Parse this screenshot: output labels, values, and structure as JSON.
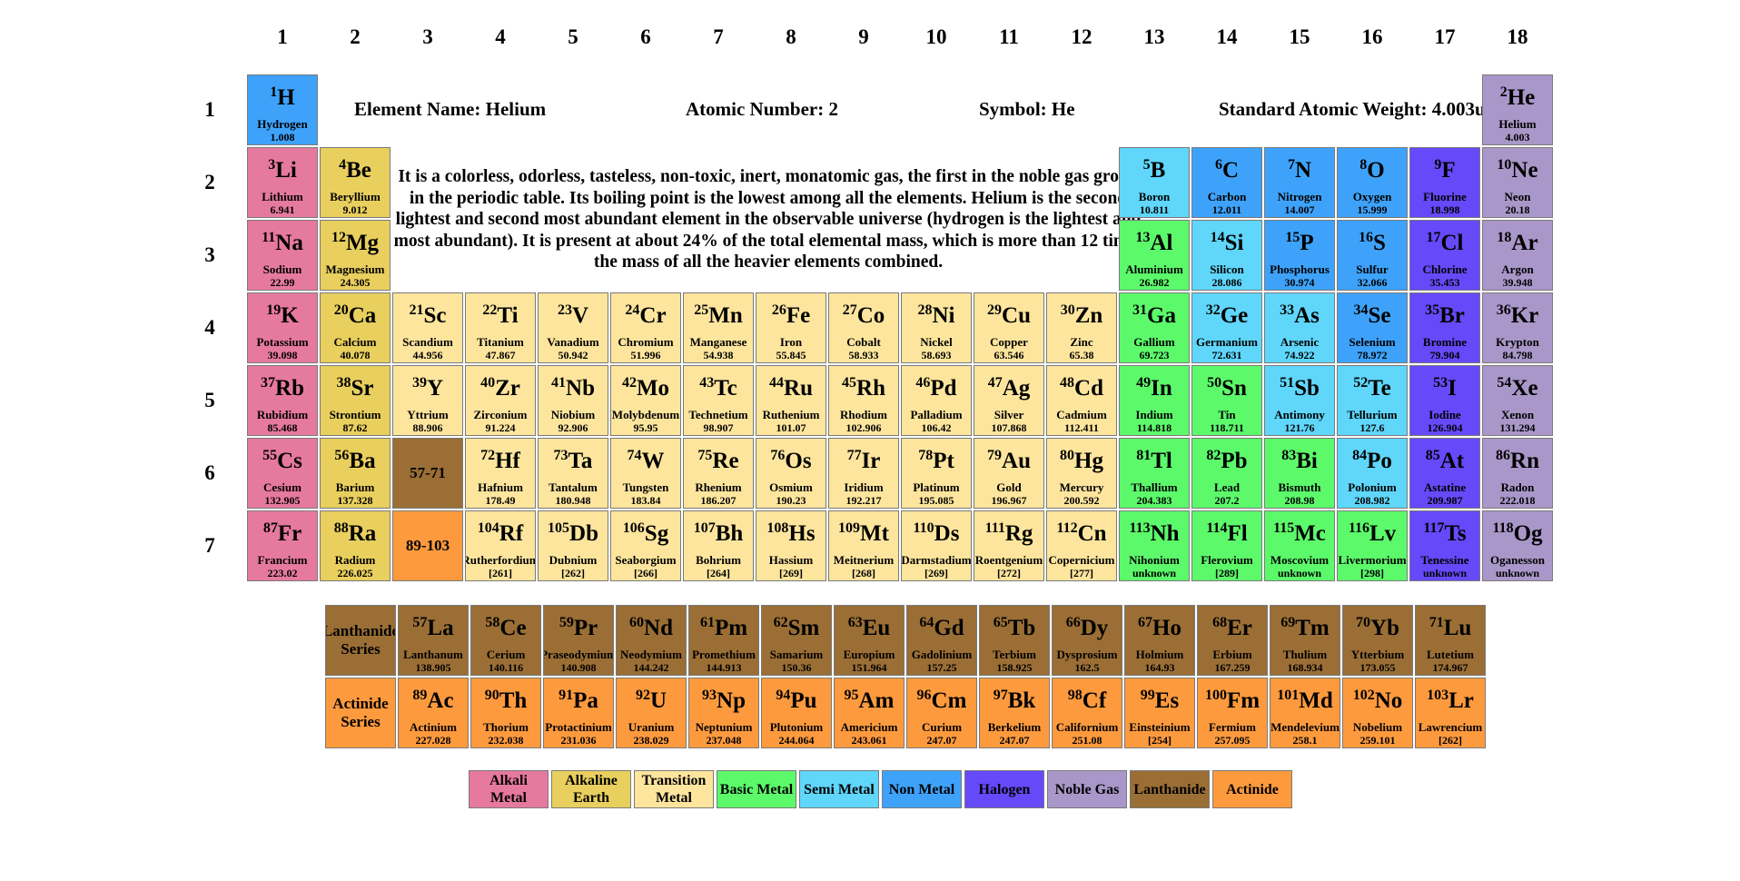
{
  "colors": {
    "alkali": "#e6799e",
    "alkaline": "#e8cf5e",
    "transition": "#fde59d",
    "basic": "#5cf96b",
    "semi": "#5fd6fa",
    "nonmetal": "#3ea2fa",
    "halogen": "#6649f9",
    "noble": "#a997c9",
    "lanthanide": "#9a6e35",
    "actinide": "#fd9a3e"
  },
  "groups": [
    "1",
    "2",
    "3",
    "4",
    "5",
    "6",
    "7",
    "8",
    "9",
    "10",
    "11",
    "12",
    "13",
    "14",
    "15",
    "16",
    "17",
    "18"
  ],
  "periods": [
    "1",
    "2",
    "3",
    "4",
    "5",
    "6",
    "7"
  ],
  "info": {
    "name": "Element Name: Helium",
    "number": "Atomic Number: 2",
    "symbol": "Symbol: He",
    "weight": "Standard Atomic Weight: 4.003u",
    "description": "It is a colorless, odorless, tasteless, non-toxic, inert, monatomic gas, the first in the noble gas group in the periodic table. Its boiling point is the lowest among all the elements. Helium is the second lightest and second most abundant element in the observable universe (hydrogen is the lightest and most abundant). It is present at about 24% of the total elemental mass, which is more than 12 times the mass of all the heavier elements combined."
  },
  "elements": [
    {
      "n": "1",
      "s": "H",
      "name": "Hydrogen",
      "w": "1.008",
      "g": 1,
      "p": 1,
      "c": "nonmetal"
    },
    {
      "n": "2",
      "s": "He",
      "name": "Helium",
      "w": "4.003",
      "g": 18,
      "p": 1,
      "c": "noble"
    },
    {
      "n": "3",
      "s": "Li",
      "name": "Lithium",
      "w": "6.941",
      "g": 1,
      "p": 2,
      "c": "alkali"
    },
    {
      "n": "4",
      "s": "Be",
      "name": "Beryllium",
      "w": "9.012",
      "g": 2,
      "p": 2,
      "c": "alkaline"
    },
    {
      "n": "5",
      "s": "B",
      "name": "Boron",
      "w": "10.811",
      "g": 13,
      "p": 2,
      "c": "semi"
    },
    {
      "n": "6",
      "s": "C",
      "name": "Carbon",
      "w": "12.011",
      "g": 14,
      "p": 2,
      "c": "nonmetal"
    },
    {
      "n": "7",
      "s": "N",
      "name": "Nitrogen",
      "w": "14.007",
      "g": 15,
      "p": 2,
      "c": "nonmetal"
    },
    {
      "n": "8",
      "s": "O",
      "name": "Oxygen",
      "w": "15.999",
      "g": 16,
      "p": 2,
      "c": "nonmetal"
    },
    {
      "n": "9",
      "s": "F",
      "name": "Fluorine",
      "w": "18.998",
      "g": 17,
      "p": 2,
      "c": "halogen"
    },
    {
      "n": "10",
      "s": "Ne",
      "name": "Neon",
      "w": "20.18",
      "g": 18,
      "p": 2,
      "c": "noble"
    },
    {
      "n": "11",
      "s": "Na",
      "name": "Sodium",
      "w": "22.99",
      "g": 1,
      "p": 3,
      "c": "alkali"
    },
    {
      "n": "12",
      "s": "Mg",
      "name": "Magnesium",
      "w": "24.305",
      "g": 2,
      "p": 3,
      "c": "alkaline"
    },
    {
      "n": "13",
      "s": "Al",
      "name": "Aluminium",
      "w": "26.982",
      "g": 13,
      "p": 3,
      "c": "basic"
    },
    {
      "n": "14",
      "s": "Si",
      "name": "Silicon",
      "w": "28.086",
      "g": 14,
      "p": 3,
      "c": "semi"
    },
    {
      "n": "15",
      "s": "P",
      "name": "Phosphorus",
      "w": "30.974",
      "g": 15,
      "p": 3,
      "c": "nonmetal"
    },
    {
      "n": "16",
      "s": "S",
      "name": "Sulfur",
      "w": "32.066",
      "g": 16,
      "p": 3,
      "c": "nonmetal"
    },
    {
      "n": "17",
      "s": "Cl",
      "name": "Chlorine",
      "w": "35.453",
      "g": 17,
      "p": 3,
      "c": "halogen"
    },
    {
      "n": "18",
      "s": "Ar",
      "name": "Argon",
      "w": "39.948",
      "g": 18,
      "p": 3,
      "c": "noble"
    },
    {
      "n": "19",
      "s": "K",
      "name": "Potassium",
      "w": "39.098",
      "g": 1,
      "p": 4,
      "c": "alkali"
    },
    {
      "n": "20",
      "s": "Ca",
      "name": "Calcium",
      "w": "40.078",
      "g": 2,
      "p": 4,
      "c": "alkaline"
    },
    {
      "n": "21",
      "s": "Sc",
      "name": "Scandium",
      "w": "44.956",
      "g": 3,
      "p": 4,
      "c": "transition"
    },
    {
      "n": "22",
      "s": "Ti",
      "name": "Titanium",
      "w": "47.867",
      "g": 4,
      "p": 4,
      "c": "transition"
    },
    {
      "n": "23",
      "s": "V",
      "name": "Vanadium",
      "w": "50.942",
      "g": 5,
      "p": 4,
      "c": "transition"
    },
    {
      "n": "24",
      "s": "Cr",
      "name": "Chromium",
      "w": "51.996",
      "g": 6,
      "p": 4,
      "c": "transition"
    },
    {
      "n": "25",
      "s": "Mn",
      "name": "Manganese",
      "w": "54.938",
      "g": 7,
      "p": 4,
      "c": "transition"
    },
    {
      "n": "26",
      "s": "Fe",
      "name": "Iron",
      "w": "55.845",
      "g": 8,
      "p": 4,
      "c": "transition"
    },
    {
      "n": "27",
      "s": "Co",
      "name": "Cobalt",
      "w": "58.933",
      "g": 9,
      "p": 4,
      "c": "transition"
    },
    {
      "n": "28",
      "s": "Ni",
      "name": "Nickel",
      "w": "58.693",
      "g": 10,
      "p": 4,
      "c": "transition"
    },
    {
      "n": "29",
      "s": "Cu",
      "name": "Copper",
      "w": "63.546",
      "g": 11,
      "p": 4,
      "c": "transition"
    },
    {
      "n": "30",
      "s": "Zn",
      "name": "Zinc",
      "w": "65.38",
      "g": 12,
      "p": 4,
      "c": "transition"
    },
    {
      "n": "31",
      "s": "Ga",
      "name": "Gallium",
      "w": "69.723",
      "g": 13,
      "p": 4,
      "c": "basic"
    },
    {
      "n": "32",
      "s": "Ge",
      "name": "Germanium",
      "w": "72.631",
      "g": 14,
      "p": 4,
      "c": "semi"
    },
    {
      "n": "33",
      "s": "As",
      "name": "Arsenic",
      "w": "74.922",
      "g": 15,
      "p": 4,
      "c": "semi"
    },
    {
      "n": "34",
      "s": "Se",
      "name": "Selenium",
      "w": "78.972",
      "g": 16,
      "p": 4,
      "c": "nonmetal"
    },
    {
      "n": "35",
      "s": "Br",
      "name": "Bromine",
      "w": "79.904",
      "g": 17,
      "p": 4,
      "c": "halogen"
    },
    {
      "n": "36",
      "s": "Kr",
      "name": "Krypton",
      "w": "84.798",
      "g": 18,
      "p": 4,
      "c": "noble"
    },
    {
      "n": "37",
      "s": "Rb",
      "name": "Rubidium",
      "w": "85.468",
      "g": 1,
      "p": 5,
      "c": "alkali"
    },
    {
      "n": "38",
      "s": "Sr",
      "name": "Strontium",
      "w": "87.62",
      "g": 2,
      "p": 5,
      "c": "alkaline"
    },
    {
      "n": "39",
      "s": "Y",
      "name": "Yttrium",
      "w": "88.906",
      "g": 3,
      "p": 5,
      "c": "transition"
    },
    {
      "n": "40",
      "s": "Zr",
      "name": "Zirconium",
      "w": "91.224",
      "g": 4,
      "p": 5,
      "c": "transition"
    },
    {
      "n": "41",
      "s": "Nb",
      "name": "Niobium",
      "w": "92.906",
      "g": 5,
      "p": 5,
      "c": "transition"
    },
    {
      "n": "42",
      "s": "Mo",
      "name": "Molybdenum",
      "w": "95.95",
      "g": 6,
      "p": 5,
      "c": "transition"
    },
    {
      "n": "43",
      "s": "Tc",
      "name": "Technetium",
      "w": "98.907",
      "g": 7,
      "p": 5,
      "c": "transition"
    },
    {
      "n": "44",
      "s": "Ru",
      "name": "Ruthenium",
      "w": "101.07",
      "g": 8,
      "p": 5,
      "c": "transition"
    },
    {
      "n": "45",
      "s": "Rh",
      "name": "Rhodium",
      "w": "102.906",
      "g": 9,
      "p": 5,
      "c": "transition"
    },
    {
      "n": "46",
      "s": "Pd",
      "name": "Palladium",
      "w": "106.42",
      "g": 10,
      "p": 5,
      "c": "transition"
    },
    {
      "n": "47",
      "s": "Ag",
      "name": "Silver",
      "w": "107.868",
      "g": 11,
      "p": 5,
      "c": "transition"
    },
    {
      "n": "48",
      "s": "Cd",
      "name": "Cadmium",
      "w": "112.411",
      "g": 12,
      "p": 5,
      "c": "transition"
    },
    {
      "n": "49",
      "s": "In",
      "name": "Indium",
      "w": "114.818",
      "g": 13,
      "p": 5,
      "c": "basic"
    },
    {
      "n": "50",
      "s": "Sn",
      "name": "Tin",
      "w": "118.711",
      "g": 14,
      "p": 5,
      "c": "basic"
    },
    {
      "n": "51",
      "s": "Sb",
      "name": "Antimony",
      "w": "121.76",
      "g": 15,
      "p": 5,
      "c": "semi"
    },
    {
      "n": "52",
      "s": "Te",
      "name": "Tellurium",
      "w": "127.6",
      "g": 16,
      "p": 5,
      "c": "semi"
    },
    {
      "n": "53",
      "s": "I",
      "name": "Iodine",
      "w": "126.904",
      "g": 17,
      "p": 5,
      "c": "halogen"
    },
    {
      "n": "54",
      "s": "Xe",
      "name": "Xenon",
      "w": "131.294",
      "g": 18,
      "p": 5,
      "c": "noble"
    },
    {
      "n": "55",
      "s": "Cs",
      "name": "Cesium",
      "w": "132.905",
      "g": 1,
      "p": 6,
      "c": "alkali"
    },
    {
      "n": "56",
      "s": "Ba",
      "name": "Barium",
      "w": "137.328",
      "g": 2,
      "p": 6,
      "c": "alkaline"
    },
    {
      "n": "72",
      "s": "Hf",
      "name": "Hafnium",
      "w": "178.49",
      "g": 4,
      "p": 6,
      "c": "transition"
    },
    {
      "n": "73",
      "s": "Ta",
      "name": "Tantalum",
      "w": "180.948",
      "g": 5,
      "p": 6,
      "c": "transition"
    },
    {
      "n": "74",
      "s": "W",
      "name": "Tungsten",
      "w": "183.84",
      "g": 6,
      "p": 6,
      "c": "transition"
    },
    {
      "n": "75",
      "s": "Re",
      "name": "Rhenium",
      "w": "186.207",
      "g": 7,
      "p": 6,
      "c": "transition"
    },
    {
      "n": "76",
      "s": "Os",
      "name": "Osmium",
      "w": "190.23",
      "g": 8,
      "p": 6,
      "c": "transition"
    },
    {
      "n": "77",
      "s": "Ir",
      "name": "Iridium",
      "w": "192.217",
      "g": 9,
      "p": 6,
      "c": "transition"
    },
    {
      "n": "78",
      "s": "Pt",
      "name": "Platinum",
      "w": "195.085",
      "g": 10,
      "p": 6,
      "c": "transition"
    },
    {
      "n": "79",
      "s": "Au",
      "name": "Gold",
      "w": "196.967",
      "g": 11,
      "p": 6,
      "c": "transition"
    },
    {
      "n": "80",
      "s": "Hg",
      "name": "Mercury",
      "w": "200.592",
      "g": 12,
      "p": 6,
      "c": "transition"
    },
    {
      "n": "81",
      "s": "Tl",
      "name": "Thallium",
      "w": "204.383",
      "g": 13,
      "p": 6,
      "c": "basic"
    },
    {
      "n": "82",
      "s": "Pb",
      "name": "Lead",
      "w": "207.2",
      "g": 14,
      "p": 6,
      "c": "basic"
    },
    {
      "n": "83",
      "s": "Bi",
      "name": "Bismuth",
      "w": "208.98",
      "g": 15,
      "p": 6,
      "c": "basic"
    },
    {
      "n": "84",
      "s": "Po",
      "name": "Polonium",
      "w": "208.982",
      "g": 16,
      "p": 6,
      "c": "semi"
    },
    {
      "n": "85",
      "s": "At",
      "name": "Astatine",
      "w": "209.987",
      "g": 17,
      "p": 6,
      "c": "halogen"
    },
    {
      "n": "86",
      "s": "Rn",
      "name": "Radon",
      "w": "222.018",
      "g": 18,
      "p": 6,
      "c": "noble"
    },
    {
      "n": "87",
      "s": "Fr",
      "name": "Francium",
      "w": "223.02",
      "g": 1,
      "p": 7,
      "c": "alkali"
    },
    {
      "n": "88",
      "s": "Ra",
      "name": "Radium",
      "w": "226.025",
      "g": 2,
      "p": 7,
      "c": "alkaline"
    },
    {
      "n": "104",
      "s": "Rf",
      "name": "Rutherfordium",
      "w": "[261]",
      "g": 4,
      "p": 7,
      "c": "transition"
    },
    {
      "n": "105",
      "s": "Db",
      "name": "Dubnium",
      "w": "[262]",
      "g": 5,
      "p": 7,
      "c": "transition"
    },
    {
      "n": "106",
      "s": "Sg",
      "name": "Seaborgium",
      "w": "[266]",
      "g": 6,
      "p": 7,
      "c": "transition"
    },
    {
      "n": "107",
      "s": "Bh",
      "name": "Bohrium",
      "w": "[264]",
      "g": 7,
      "p": 7,
      "c": "transition"
    },
    {
      "n": "108",
      "s": "Hs",
      "name": "Hassium",
      "w": "[269]",
      "g": 8,
      "p": 7,
      "c": "transition"
    },
    {
      "n": "109",
      "s": "Mt",
      "name": "Meitnerium",
      "w": "[268]",
      "g": 9,
      "p": 7,
      "c": "transition"
    },
    {
      "n": "110",
      "s": "Ds",
      "name": "Darmstadium",
      "w": "[269]",
      "g": 10,
      "p": 7,
      "c": "transition"
    },
    {
      "n": "111",
      "s": "Rg",
      "name": "Roentgenium",
      "w": "[272]",
      "g": 11,
      "p": 7,
      "c": "transition"
    },
    {
      "n": "112",
      "s": "Cn",
      "name": "Copernicium",
      "w": "[277]",
      "g": 12,
      "p": 7,
      "c": "transition"
    },
    {
      "n": "113",
      "s": "Nh",
      "name": "Nihonium",
      "w": "unknown",
      "g": 13,
      "p": 7,
      "c": "basic"
    },
    {
      "n": "114",
      "s": "Fl",
      "name": "Flerovium",
      "w": "[289]",
      "g": 14,
      "p": 7,
      "c": "basic"
    },
    {
      "n": "115",
      "s": "Mc",
      "name": "Moscovium",
      "w": "unknown",
      "g": 15,
      "p": 7,
      "c": "basic"
    },
    {
      "n": "116",
      "s": "Lv",
      "name": "Livermorium",
      "w": "[298]",
      "g": 16,
      "p": 7,
      "c": "basic"
    },
    {
      "n": "117",
      "s": "Ts",
      "name": "Tenessine",
      "w": "unknown",
      "g": 17,
      "p": 7,
      "c": "halogen"
    },
    {
      "n": "118",
      "s": "Og",
      "name": "Oganesson",
      "w": "unknown",
      "g": 18,
      "p": 7,
      "c": "noble"
    }
  ],
  "placeholders": [
    {
      "label": "57-71",
      "g": 3,
      "p": 6,
      "c": "lanthanide"
    },
    {
      "label": "89-103",
      "g": 3,
      "p": 7,
      "c": "actinide"
    }
  ],
  "series": {
    "lanthanide": {
      "label_line1": "Lanthanide",
      "label_line2": "Series",
      "items": [
        {
          "n": "57",
          "s": "La",
          "name": "Lanthanum",
          "w": "138.905"
        },
        {
          "n": "58",
          "s": "Ce",
          "name": "Cerium",
          "w": "140.116"
        },
        {
          "n": "59",
          "s": "Pr",
          "name": "Praseodymium",
          "w": "140.908"
        },
        {
          "n": "60",
          "s": "Nd",
          "name": "Neodymium",
          "w": "144.242"
        },
        {
          "n": "61",
          "s": "Pm",
          "name": "Promethium",
          "w": "144.913"
        },
        {
          "n": "62",
          "s": "Sm",
          "name": "Samarium",
          "w": "150.36"
        },
        {
          "n": "63",
          "s": "Eu",
          "name": "Europium",
          "w": "151.964"
        },
        {
          "n": "64",
          "s": "Gd",
          "name": "Gadolinium",
          "w": "157.25"
        },
        {
          "n": "65",
          "s": "Tb",
          "name": "Terbium",
          "w": "158.925"
        },
        {
          "n": "66",
          "s": "Dy",
          "name": "Dysprosium",
          "w": "162.5"
        },
        {
          "n": "67",
          "s": "Ho",
          "name": "Holmium",
          "w": "164.93"
        },
        {
          "n": "68",
          "s": "Er",
          "name": "Erbium",
          "w": "167.259"
        },
        {
          "n": "69",
          "s": "Tm",
          "name": "Thulium",
          "w": "168.934"
        },
        {
          "n": "70",
          "s": "Yb",
          "name": "Ytterbium",
          "w": "173.055"
        },
        {
          "n": "71",
          "s": "Lu",
          "name": "Lutetium",
          "w": "174.967"
        }
      ]
    },
    "actinide": {
      "label_line1": "Actinide",
      "label_line2": "Series",
      "items": [
        {
          "n": "89",
          "s": "Ac",
          "name": "Actinium",
          "w": "227.028"
        },
        {
          "n": "90",
          "s": "Th",
          "name": "Thorium",
          "w": "232.038"
        },
        {
          "n": "91",
          "s": "Pa",
          "name": "Protactinium",
          "w": "231.036"
        },
        {
          "n": "92",
          "s": "U",
          "name": "Uranium",
          "w": "238.029"
        },
        {
          "n": "93",
          "s": "Np",
          "name": "Neptunium",
          "w": "237.048"
        },
        {
          "n": "94",
          "s": "Pu",
          "name": "Plutonium",
          "w": "244.064"
        },
        {
          "n": "95",
          "s": "Am",
          "name": "Americium",
          "w": "243.061"
        },
        {
          "n": "96",
          "s": "Cm",
          "name": "Curium",
          "w": "247.07"
        },
        {
          "n": "97",
          "s": "Bk",
          "name": "Berkelium",
          "w": "247.07"
        },
        {
          "n": "98",
          "s": "Cf",
          "name": "Californium",
          "w": "251.08"
        },
        {
          "n": "99",
          "s": "Es",
          "name": "Einsteinium",
          "w": "[254]"
        },
        {
          "n": "100",
          "s": "Fm",
          "name": "Fermium",
          "w": "257.095"
        },
        {
          "n": "101",
          "s": "Md",
          "name": "Mendelevium",
          "w": "258.1"
        },
        {
          "n": "102",
          "s": "No",
          "name": "Nobelium",
          "w": "259.101"
        },
        {
          "n": "103",
          "s": "Lr",
          "name": "Lawrencium",
          "w": "[262]"
        }
      ]
    }
  },
  "legend": [
    {
      "line1": "Alkali",
      "line2": "Metal",
      "c": "alkali"
    },
    {
      "line1": "Alkaline",
      "line2": "Earth",
      "c": "alkaline"
    },
    {
      "line1": "Transition",
      "line2": "Metal",
      "c": "transition"
    },
    {
      "line1": "Basic Metal",
      "line2": "",
      "c": "basic"
    },
    {
      "line1": "Semi Metal",
      "line2": "",
      "c": "semi"
    },
    {
      "line1": "Non Metal",
      "line2": "",
      "c": "nonmetal"
    },
    {
      "line1": "Halogen",
      "line2": "",
      "c": "halogen"
    },
    {
      "line1": "Noble Gas",
      "line2": "",
      "c": "noble"
    },
    {
      "line1": "Lanthanide",
      "line2": "",
      "c": "lanthanide"
    },
    {
      "line1": "Actinide",
      "line2": "",
      "c": "actinide"
    }
  ]
}
